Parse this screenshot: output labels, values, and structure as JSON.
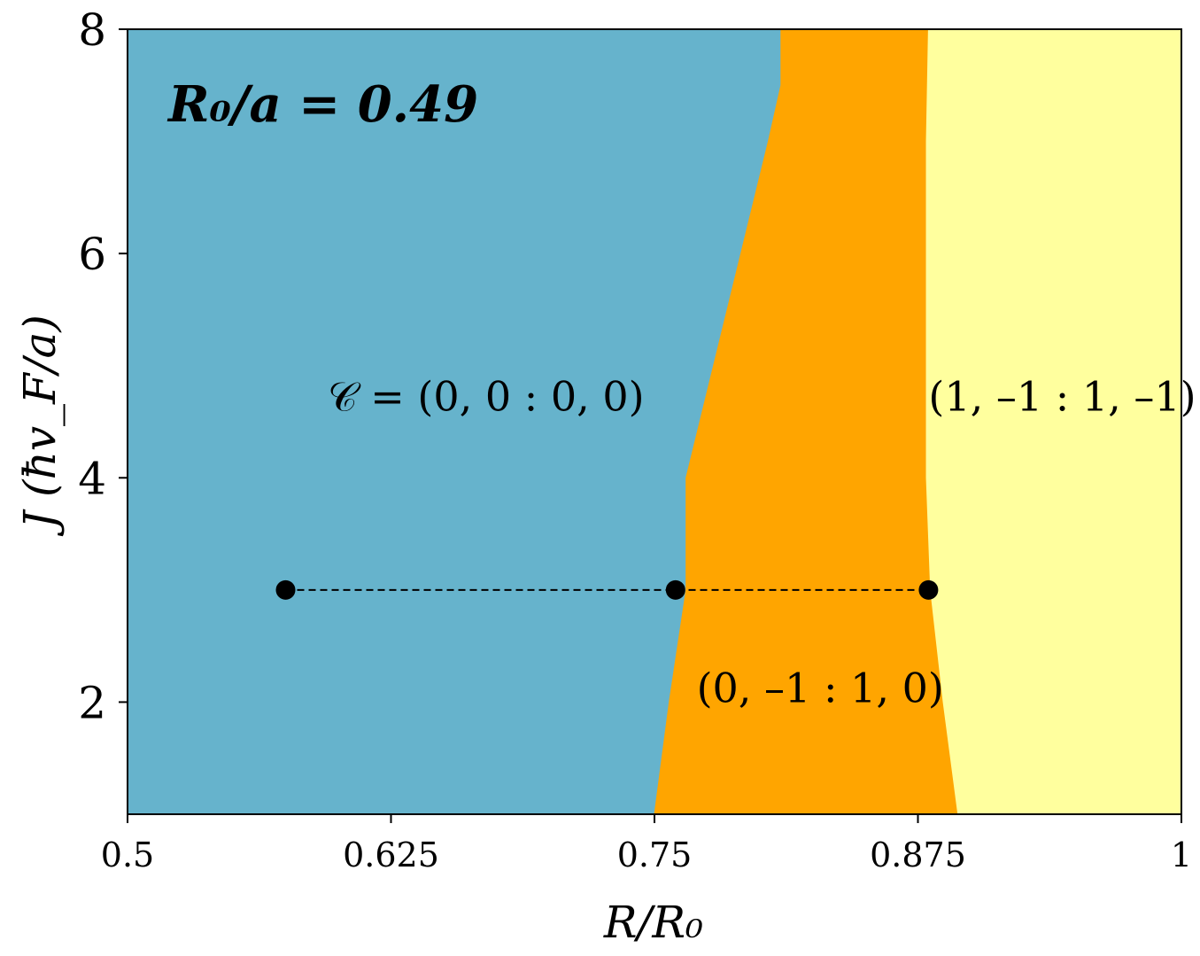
{
  "chart_data": {
    "type": "heatmap",
    "annotation": "R₀/a = 0.49",
    "xlabel": "R/R₀",
    "ylabel": "J  (ħv_F/a)",
    "xlim": [
      0.5,
      1.0
    ],
    "ylim": [
      1.0,
      8.0
    ],
    "x_ticks": [
      0.5,
      0.625,
      0.75,
      0.875,
      1.0
    ],
    "x_tick_labels": [
      "0.5",
      "0.625",
      "0.75",
      "0.875",
      "1"
    ],
    "y_ticks": [
      2,
      4,
      6,
      8
    ],
    "y_tick_labels": [
      "2",
      "4",
      "6",
      "8"
    ],
    "grid": false,
    "regions": [
      {
        "label": "𝒞 = (0, 0 : 0, 0)",
        "color": "#66b3cc",
        "label_at": [
          0.595,
          4.6
        ]
      },
      {
        "label": "(0, –1 : 1, 0)",
        "color": "#ffa500",
        "label_at": [
          0.77,
          2.0
        ]
      },
      {
        "label": "(1, –1 : 1, –1)",
        "color": "#ffff9e",
        "label_at": [
          0.88,
          4.6
        ]
      }
    ],
    "boundaries": [
      {
        "between": [
          "𝒞 = (0, 0 : 0, 0)",
          "(0, –1 : 1, 0)"
        ],
        "points": [
          [
            0.75,
            1.0
          ],
          [
            0.757,
            2.0
          ],
          [
            0.765,
            3.0
          ],
          [
            0.765,
            4.0
          ],
          [
            0.778,
            5.0
          ],
          [
            0.791,
            6.0
          ],
          [
            0.804,
            7.0
          ],
          [
            0.81,
            7.5
          ],
          [
            0.81,
            8.0
          ]
        ]
      },
      {
        "between": [
          "(0, –1 : 1, 0)",
          "(1, –1 : 1, –1)"
        ],
        "points": [
          [
            0.894,
            1.0
          ],
          [
            0.887,
            2.0
          ],
          [
            0.881,
            3.0
          ],
          [
            0.879,
            4.0
          ],
          [
            0.879,
            5.0
          ],
          [
            0.879,
            6.0
          ],
          [
            0.879,
            7.0
          ],
          [
            0.88,
            8.0
          ]
        ]
      }
    ],
    "path": {
      "style": "dashed",
      "color": "#000000",
      "points": [
        [
          0.575,
          3.0
        ],
        [
          0.76,
          3.0
        ],
        [
          0.88,
          3.0
        ]
      ]
    }
  }
}
